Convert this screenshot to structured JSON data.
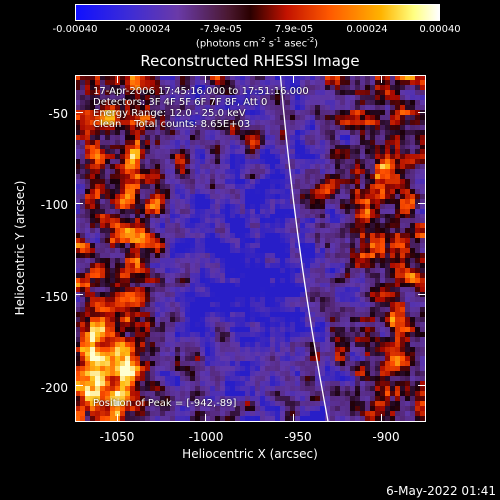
{
  "colorbar": {
    "ticks": [
      "-0.00040",
      "-0.00024",
      "-7.9e-05",
      "7.9e-05",
      "0.00024",
      "0.00040"
    ],
    "unit_prefix": "(photons cm",
    "unit_exp1": "-2",
    "unit_mid": " s",
    "unit_exp2": "-1",
    "unit_mid2": " asec",
    "unit_exp3": "-2",
    "unit_suffix": ")",
    "range": [
      -0.0004,
      0.0004
    ]
  },
  "chart_data": {
    "type": "heatmap",
    "title": "Reconstructed RHESSI Image",
    "xlabel": "Heliocentric X (arcsec)",
    "ylabel": "Heliocentric Y (arcsec)",
    "xlim": [
      -1073,
      -875
    ],
    "ylim": [
      -220,
      -30
    ],
    "xticks": [
      -1050,
      -1000,
      -950,
      -900
    ],
    "xtick_labels": [
      "-1050",
      "-1000",
      "-950",
      "-900"
    ],
    "yticks": [
      -50,
      -100,
      -150,
      -200
    ],
    "ytick_labels": [
      "-50",
      "-100",
      "-150",
      "-200"
    ],
    "grid": false,
    "annotations": [
      "17-Apr-2006 17:45:16.000 to 17:51:16.000",
      "Detectors: 3F 4F 5F 6F 7F 8F, Att 0",
      "Energy Range: 12.0 - 25.0 keV",
      "Clean    Total counts: 8.65E+03"
    ],
    "peak_label": "Position of Peak = [-942,-89]",
    "peak_position": [
      -942,
      -89
    ],
    "limb_curve_x_at_top": -957,
    "limb_curve_x_at_bottom": -938
  },
  "footer": {
    "timestamp": "6-May-2022 01:41"
  }
}
